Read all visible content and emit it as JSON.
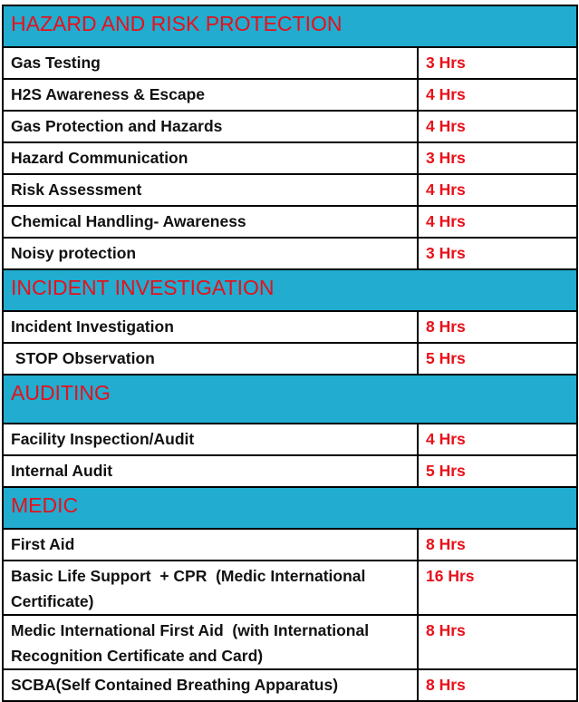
{
  "sections": [
    {
      "title": "HAZARD AND RISK PROTECTION",
      "items": [
        {
          "name": "Gas Testing",
          "hours": "3 Hrs"
        },
        {
          "name": "H2S Awareness & Escape",
          "hours": "4 Hrs"
        },
        {
          "name": "Gas Protection and Hazards",
          "hours": "4 Hrs"
        },
        {
          "name": "Hazard Communication",
          "hours": "3 Hrs"
        },
        {
          "name": "Risk Assessment",
          "hours": "4 Hrs"
        },
        {
          "name": "Chemical Handling- Awareness",
          "hours": "4 Hrs"
        },
        {
          "name": "Noisy protection",
          "hours": "3 Hrs"
        }
      ]
    },
    {
      "title": "INCIDENT INVESTIGATION",
      "items": [
        {
          "name": "Incident Investigation",
          "hours": "8 Hrs"
        },
        {
          "name": " STOP Observation",
          "hours": "5 Hrs"
        }
      ]
    },
    {
      "title": "AUDITING",
      "items": [
        {
          "name": "Facility Inspection/Audit",
          "hours": "4 Hrs"
        },
        {
          "name": "Internal Audit",
          "hours": "5 Hrs"
        }
      ]
    },
    {
      "title": "MEDIC",
      "items": [
        {
          "name": "First Aid",
          "hours": "8 Hrs"
        },
        {
          "name": "Basic Life Support  + CPR  (Medic International Certificate)",
          "hours": "16 Hrs"
        },
        {
          "name": "Medic International First Aid  (with International Recognition Certificate and Card)",
          "hours": "8 Hrs"
        },
        {
          "name": "SCBA(Self Contained Breathing Apparatus)",
          "hours": "8 Hrs"
        }
      ]
    }
  ],
  "colors": {
    "section_background": "#21acd0",
    "accent_red": "#e8101a",
    "border": "#000000"
  }
}
